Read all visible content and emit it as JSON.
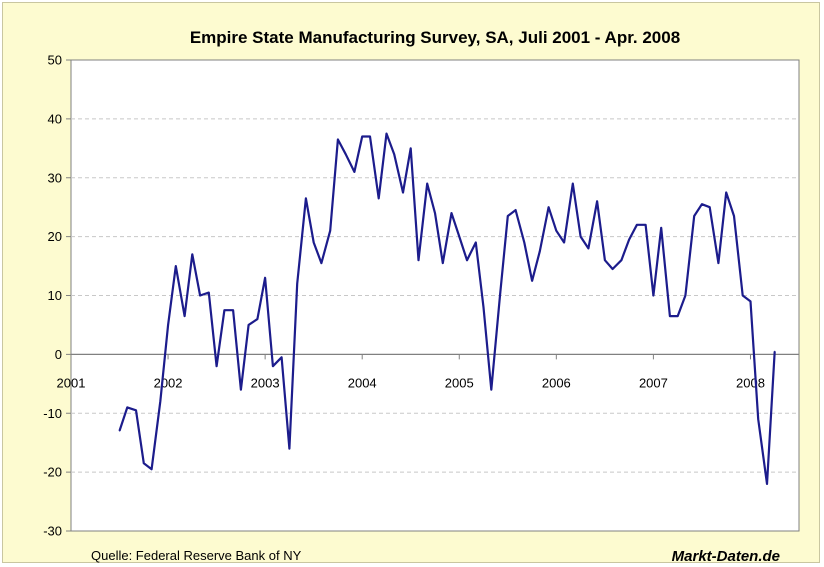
{
  "chart_data": {
    "type": "line",
    "title": "Empire State Manufacturing Survey, SA, Juli 2001 - Apr. 2008",
    "xlabel": "",
    "ylabel": "",
    "ylim": [
      -30,
      50
    ],
    "yticks": [
      -30,
      -20,
      -10,
      0,
      10,
      20,
      30,
      40,
      50
    ],
    "xlim": [
      2001,
      2008.5
    ],
    "xticks": [
      2001,
      2002,
      2003,
      2004,
      2005,
      2006,
      2007,
      2008
    ],
    "grid": "horizontal dashed",
    "legend": "none",
    "series": [
      {
        "color": "#1c1c8c",
        "points": [
          [
            2001.5,
            -13
          ],
          [
            2001.58,
            -9
          ],
          [
            2001.67,
            -9.5
          ],
          [
            2001.75,
            -18.5
          ],
          [
            2001.83,
            -19.5
          ],
          [
            2001.92,
            -8
          ],
          [
            2002.0,
            5
          ],
          [
            2002.08,
            15
          ],
          [
            2002.17,
            6.5
          ],
          [
            2002.25,
            17
          ],
          [
            2002.33,
            10
          ],
          [
            2002.42,
            10.5
          ],
          [
            2002.5,
            -2
          ],
          [
            2002.58,
            7.5
          ],
          [
            2002.67,
            7.5
          ],
          [
            2002.75,
            -6
          ],
          [
            2002.83,
            5
          ],
          [
            2002.92,
            6
          ],
          [
            2003.0,
            13
          ],
          [
            2003.08,
            -2
          ],
          [
            2003.17,
            -0.5
          ],
          [
            2003.25,
            -16
          ],
          [
            2003.33,
            12
          ],
          [
            2003.42,
            26.5
          ],
          [
            2003.5,
            19
          ],
          [
            2003.58,
            15.5
          ],
          [
            2003.67,
            21
          ],
          [
            2003.75,
            36.5
          ],
          [
            2003.83,
            34
          ],
          [
            2003.92,
            31
          ],
          [
            2004.0,
            37
          ],
          [
            2004.08,
            37
          ],
          [
            2004.17,
            26.5
          ],
          [
            2004.25,
            37.5
          ],
          [
            2004.33,
            34
          ],
          [
            2004.42,
            27.5
          ],
          [
            2004.5,
            35
          ],
          [
            2004.58,
            16
          ],
          [
            2004.67,
            29
          ],
          [
            2004.75,
            24
          ],
          [
            2004.83,
            15.5
          ],
          [
            2004.92,
            24
          ],
          [
            2005.0,
            20
          ],
          [
            2005.08,
            16
          ],
          [
            2005.17,
            19
          ],
          [
            2005.25,
            8
          ],
          [
            2005.33,
            -6
          ],
          [
            2005.42,
            10
          ],
          [
            2005.5,
            23.5
          ],
          [
            2005.58,
            24.5
          ],
          [
            2005.67,
            19
          ],
          [
            2005.75,
            12.5
          ],
          [
            2005.83,
            17.5
          ],
          [
            2005.92,
            25
          ],
          [
            2006.0,
            21
          ],
          [
            2006.08,
            19
          ],
          [
            2006.17,
            29
          ],
          [
            2006.25,
            20
          ],
          [
            2006.33,
            18
          ],
          [
            2006.42,
            26
          ],
          [
            2006.5,
            16
          ],
          [
            2006.58,
            14.5
          ],
          [
            2006.67,
            16
          ],
          [
            2006.75,
            19.5
          ],
          [
            2006.83,
            22
          ],
          [
            2006.92,
            22
          ],
          [
            2007.0,
            10
          ],
          [
            2007.08,
            21.5
          ],
          [
            2007.17,
            6.5
          ],
          [
            2007.25,
            6.5
          ],
          [
            2007.33,
            10
          ],
          [
            2007.42,
            23.5
          ],
          [
            2007.5,
            25.5
          ],
          [
            2007.58,
            25
          ],
          [
            2007.67,
            15.5
          ],
          [
            2007.75,
            27.5
          ],
          [
            2007.83,
            23.5
          ],
          [
            2007.92,
            10
          ],
          [
            2008.0,
            9
          ],
          [
            2008.08,
            -11
          ],
          [
            2008.17,
            -22
          ],
          [
            2008.25,
            0.5
          ]
        ]
      }
    ]
  },
  "footer": {
    "source": "Quelle: Federal Reserve Bank of NY",
    "brand": "Markt-Daten.de"
  }
}
